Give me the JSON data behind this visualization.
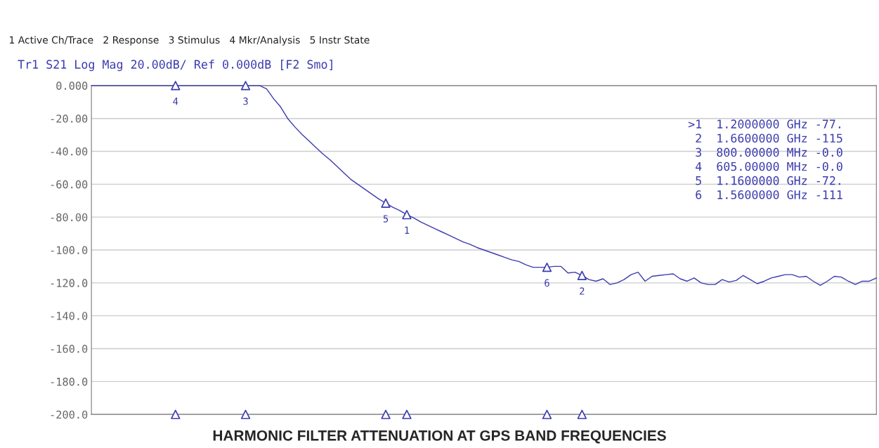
{
  "chart_data": {
    "type": "line",
    "title": "HARMONIC FILTER ATTENUATION AT GPS BAND FREQUENCIES",
    "annotations": [
      "1 Active Ch/Trace   2 Response   3 Stimulus   4 Mkr/Analysis   5 Instr State",
      "Tr1 S21 Log Mag 20.00dB/ Ref 0.000dB [F2 Smo]",
      ">1  1.2000000 GHz -77.",
      " 2  1.6600000 GHz -115",
      " 3  800.00000 MHz -0.0",
      " 4  605.00000 MHz -0.0",
      " 5  1.1600000 GHz -72.",
      " 6  1.5600000 GHz -111"
    ],
    "categories": [
      null,
      null,
      null,
      null,
      null,
      null,
      null,
      null,
      null,
      null,
      null,
      null,
      null,
      null,
      null,
      null,
      null,
      null,
      null,
      null,
      null,
      null,
      null,
      null,
      null,
      null,
      null,
      null,
      null,
      null,
      null,
      null,
      null,
      null,
      null,
      null,
      null,
      null,
      null,
      null,
      null,
      null,
      null,
      null,
      null,
      null,
      null,
      null,
      null,
      null,
      null,
      null,
      null,
      null,
      null,
      null,
      null,
      null,
      null,
      null,
      null,
      null,
      null,
      null,
      null,
      null,
      null,
      null,
      null,
      null,
      null,
      null,
      null,
      null,
      null,
      null,
      null,
      null,
      null,
      null,
      null,
      null,
      null,
      null,
      null,
      null,
      null,
      null,
      null,
      null,
      null,
      null,
      null,
      null,
      null,
      null,
      null,
      null,
      null,
      null,
      null,
      null,
      null,
      null,
      null,
      null,
      null,
      null,
      null,
      null,
      null,
      null,
      null
    ],
    "series": [
      {
        "color": "#3b3bb0",
        "values": [
          0,
          0,
          0,
          0,
          0,
          0,
          0,
          0,
          0,
          0,
          0,
          0,
          0,
          0,
          0,
          0,
          0,
          0,
          0,
          0,
          0,
          0,
          0,
          0,
          0,
          -2,
          -8,
          -13,
          -20,
          -25,
          -29.5,
          -33.5,
          -37.5,
          -41.5,
          -45,
          -49,
          -53,
          -57,
          -60,
          -63,
          -66,
          -69,
          -71.5,
          -74,
          -76,
          -78.5,
          -80.5,
          -83,
          -85,
          -87,
          -89,
          -91,
          -93,
          -95,
          -96.5,
          -98.5,
          -100,
          -101.5,
          -103,
          -104.5,
          -106,
          -107,
          -109,
          -110.5,
          -110.5,
          -110.5,
          -110,
          -110,
          -114,
          -113.5,
          -115.5,
          -118,
          -119,
          -117.5,
          -121,
          -120,
          -118,
          -115,
          -113.5,
          -119,
          -116,
          -115.5,
          -115,
          -114.5,
          -117.5,
          -119,
          -117,
          -120,
          -121,
          -121,
          -118,
          -119.5,
          -118.5,
          -115.5,
          -118,
          -120.5,
          -119,
          -117,
          -116,
          -115,
          -115,
          -116.5,
          -116,
          -119,
          -121.5,
          -119,
          -116,
          -116.5,
          -119,
          -121,
          -119,
          -119,
          -117
        ]
      },
      {
        "type": "scatter",
        "marker": "triangle",
        "name": "4",
        "color": "#3b3bb0",
        "values": [
          null,
          null,
          null,
          null,
          null,
          null,
          null,
          null,
          null,
          null,
          null,
          null,
          0,
          null,
          null,
          null,
          null,
          null,
          null,
          null,
          null,
          null,
          null,
          null,
          null,
          null,
          null,
          null,
          null,
          null,
          null,
          null,
          null,
          null,
          null,
          null,
          null,
          null,
          null,
          null,
          null,
          null,
          null,
          null,
          null,
          null,
          null,
          null,
          null,
          null,
          null,
          null,
          null,
          null,
          null,
          null,
          null,
          null,
          null,
          null,
          null,
          null,
          null,
          null,
          null,
          null,
          null,
          null,
          null,
          null,
          null,
          null,
          null,
          null,
          null,
          null,
          null,
          null,
          null,
          null,
          null,
          null,
          null,
          null,
          null,
          null,
          null,
          null,
          null,
          null,
          null,
          null,
          null,
          null,
          null,
          null,
          null,
          null,
          null,
          null,
          null,
          null,
          null,
          null,
          null,
          null,
          null,
          null,
          null,
          null,
          null,
          null,
          null
        ]
      },
      {
        "type": "scatter",
        "marker": "triangle",
        "name": "3",
        "color": "#3b3bb0",
        "values": [
          null,
          null,
          null,
          null,
          null,
          null,
          null,
          null,
          null,
          null,
          null,
          null,
          null,
          null,
          null,
          null,
          null,
          null,
          null,
          null,
          null,
          null,
          0,
          null,
          null,
          null,
          null,
          null,
          null,
          null,
          null,
          null,
          null,
          null,
          null,
          null,
          null,
          null,
          null,
          null,
          null,
          null,
          null,
          null,
          null,
          null,
          null,
          null,
          null,
          null,
          null,
          null,
          null,
          null,
          null,
          null,
          null,
          null,
          null,
          null,
          null,
          null,
          null,
          null,
          null,
          null,
          null,
          null,
          null,
          null,
          null,
          null,
          null,
          null,
          null,
          null,
          null,
          null,
          null,
          null,
          null,
          null,
          null,
          null,
          null,
          null,
          null,
          null,
          null,
          null,
          null,
          null,
          null,
          null,
          null,
          null,
          null,
          null,
          null,
          null,
          null,
          null,
          null,
          null,
          null,
          null,
          null,
          null,
          null,
          null,
          null,
          null,
          null
        ]
      },
      {
        "type": "scatter",
        "marker": "triangle",
        "name": "5",
        "color": "#3b3bb0",
        "values": [
          null,
          null,
          null,
          null,
          null,
          null,
          null,
          null,
          null,
          null,
          null,
          null,
          null,
          null,
          null,
          null,
          null,
          null,
          null,
          null,
          null,
          null,
          null,
          null,
          null,
          null,
          null,
          null,
          null,
          null,
          null,
          null,
          null,
          null,
          null,
          null,
          null,
          null,
          null,
          null,
          null,
          null,
          -71.5,
          null,
          null,
          null,
          null,
          null,
          null,
          null,
          null,
          null,
          null,
          null,
          null,
          null,
          null,
          null,
          null,
          null,
          null,
          null,
          null,
          null,
          null,
          null,
          null,
          null,
          null,
          null,
          null,
          null,
          null,
          null,
          null,
          null,
          null,
          null,
          null,
          null,
          null,
          null,
          null,
          null,
          null,
          null,
          null,
          null,
          null,
          null,
          null,
          null,
          null,
          null,
          null,
          null,
          null,
          null,
          null,
          null,
          null,
          null,
          null,
          null,
          null,
          null,
          null,
          null,
          null,
          null,
          null,
          null,
          null
        ]
      },
      {
        "type": "scatter",
        "marker": "triangle",
        "name": "1",
        "color": "#3b3bb0",
        "values": [
          null,
          null,
          null,
          null,
          null,
          null,
          null,
          null,
          null,
          null,
          null,
          null,
          null,
          null,
          null,
          null,
          null,
          null,
          null,
          null,
          null,
          null,
          null,
          null,
          null,
          null,
          null,
          null,
          null,
          null,
          null,
          null,
          null,
          null,
          null,
          null,
          null,
          null,
          null,
          null,
          null,
          null,
          null,
          null,
          null,
          -78.5,
          null,
          null,
          null,
          null,
          null,
          null,
          null,
          null,
          null,
          null,
          null,
          null,
          null,
          null,
          null,
          null,
          null,
          null,
          null,
          null,
          null,
          null,
          null,
          null,
          null,
          null,
          null,
          null,
          null,
          null,
          null,
          null,
          null,
          null,
          null,
          null,
          null,
          null,
          null,
          null,
          null,
          null,
          null,
          null,
          null,
          null,
          null,
          null,
          null,
          null,
          null,
          null,
          null,
          null,
          null,
          null,
          null,
          null,
          null,
          null,
          null,
          null,
          null,
          null,
          null,
          null,
          null
        ]
      },
      {
        "type": "scatter",
        "marker": "triangle",
        "name": "6",
        "color": "#3b3bb0",
        "values": [
          null,
          null,
          null,
          null,
          null,
          null,
          null,
          null,
          null,
          null,
          null,
          null,
          null,
          null,
          null,
          null,
          null,
          null,
          null,
          null,
          null,
          null,
          null,
          null,
          null,
          null,
          null,
          null,
          null,
          null,
          null,
          null,
          null,
          null,
          null,
          null,
          null,
          null,
          null,
          null,
          null,
          null,
          null,
          null,
          null,
          null,
          null,
          null,
          null,
          null,
          null,
          null,
          null,
          null,
          null,
          null,
          null,
          null,
          null,
          null,
          null,
          null,
          null,
          null,
          null,
          -110.5,
          null,
          null,
          null,
          null,
          null,
          null,
          null,
          null,
          null,
          null,
          null,
          null,
          null,
          null,
          null,
          null,
          null,
          null,
          null,
          null,
          null,
          null,
          null,
          null,
          null,
          null,
          null,
          null,
          null,
          null,
          null,
          null,
          null,
          null,
          null,
          null,
          null,
          null,
          null,
          null,
          null,
          null,
          null,
          null,
          null,
          null,
          null
        ]
      },
      {
        "type": "scatter",
        "marker": "triangle",
        "name": "2",
        "color": "#3b3bb0",
        "values": [
          null,
          null,
          null,
          null,
          null,
          null,
          null,
          null,
          null,
          null,
          null,
          null,
          null,
          null,
          null,
          null,
          null,
          null,
          null,
          null,
          null,
          null,
          null,
          null,
          null,
          null,
          null,
          null,
          null,
          null,
          null,
          null,
          null,
          null,
          null,
          null,
          null,
          null,
          null,
          null,
          null,
          null,
          null,
          null,
          null,
          null,
          null,
          null,
          null,
          null,
          null,
          null,
          null,
          null,
          null,
          null,
          null,
          null,
          null,
          null,
          null,
          null,
          null,
          null,
          null,
          null,
          null,
          null,
          null,
          null,
          -115.5,
          null,
          null,
          null,
          null,
          null,
          null,
          null,
          null,
          null,
          null,
          null,
          null,
          null,
          null,
          null,
          null,
          null,
          null,
          null,
          null,
          null,
          null,
          null,
          null,
          null,
          null,
          null,
          null,
          null,
          null,
          null,
          null,
          null,
          null,
          null,
          null,
          null,
          null,
          null,
          null,
          null,
          null
        ]
      },
      {
        "type": "scatter",
        "marker": "triangle",
        "color": "#3b3bb0",
        "values": [
          null,
          null,
          null,
          null,
          null,
          null,
          null,
          null,
          null,
          null,
          null,
          null,
          -200,
          null,
          null,
          null,
          null,
          null,
          null,
          null,
          null,
          null,
          -200,
          null,
          null,
          null,
          null,
          null,
          null,
          null,
          null,
          null,
          null,
          null,
          null,
          null,
          null,
          null,
          null,
          null,
          null,
          null,
          -200,
          null,
          null,
          -200,
          null,
          null,
          null,
          null,
          null,
          null,
          null,
          null,
          null,
          null,
          null,
          null,
          null,
          null,
          null,
          null,
          null,
          null,
          null,
          -200,
          null,
          null,
          null,
          null,
          -200,
          null,
          null,
          null,
          null,
          null,
          null,
          null,
          null,
          null,
          null,
          null,
          null,
          null,
          null,
          null,
          null,
          null,
          null,
          null,
          null,
          null,
          null,
          null,
          null,
          null,
          null,
          null,
          null,
          null,
          null,
          null,
          null,
          null,
          null,
          null,
          null,
          null,
          null,
          null,
          null,
          null,
          null
        ]
      }
    ],
    "ylim": [
      -200,
      0
    ],
    "yticks": [
      {
        "value": 0,
        "label": "0.000"
      },
      {
        "value": -20,
        "label": "-20.00"
      },
      {
        "value": -40,
        "label": "-40.00"
      },
      {
        "value": -60,
        "label": "-60.00"
      },
      {
        "value": -80,
        "label": "-80.00"
      },
      {
        "value": -100,
        "label": "-100.0"
      },
      {
        "value": -120,
        "label": "-120.0"
      },
      {
        "value": -140,
        "label": "-140.0"
      },
      {
        "value": -160,
        "label": "-160.0"
      },
      {
        "value": -180,
        "label": "-180.0"
      },
      {
        "value": -200,
        "label": "-200.0"
      }
    ],
    "grid": "y",
    "tick_labels": "y"
  }
}
